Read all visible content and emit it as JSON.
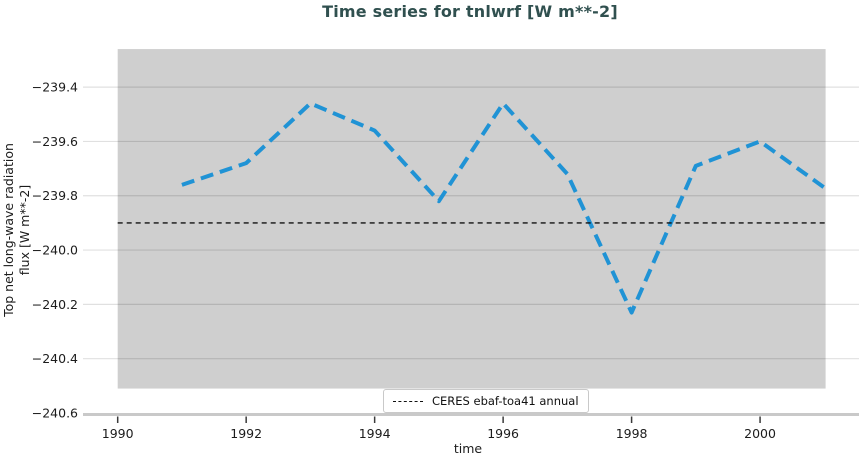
{
  "colors": {
    "title": "#30504f",
    "line": "#2093d5",
    "reference_line": "#111111",
    "band": "#cfcfcf",
    "grid": "rgba(0,0,0,0.12)",
    "axis_line": "#c9c9c9",
    "tick_mark": "#3a3a3a",
    "text": "#1c1c1c"
  },
  "legend": {
    "position": "lower center",
    "items": [
      {
        "label": "CERES ebaf-toa41 annual",
        "sample": "black-dashed-line"
      }
    ]
  },
  "chart_data": {
    "type": "line",
    "title": "Time series for tnlwrf [W m**-2]",
    "xlabel": "time",
    "ylabel": "Top net long-wave radiation\nflux [W m**-2]",
    "xlim": [
      1989.46,
      2001.54
    ],
    "ylim": [
      -240.6,
      -239.245
    ],
    "grid": true,
    "xticks": [
      1990,
      1992,
      1994,
      1996,
      1998,
      2000
    ],
    "xtick_labels": [
      "1990",
      "1992",
      "1994",
      "1996",
      "1998",
      "2000"
    ],
    "yticks": [
      -239.4,
      -239.6,
      -239.8,
      -240.0,
      -240.2,
      -240.4,
      -240.6
    ],
    "ytick_labels": [
      "−239.4",
      "−239.6",
      "−239.8",
      "−240.0",
      "−240.2",
      "−240.4",
      "−240.6"
    ],
    "band": {
      "x_range": [
        1990,
        2001.02
      ],
      "y_range": [
        -240.51,
        -239.26
      ]
    },
    "series": [
      {
        "name": "tnlwrf",
        "style": "dashed",
        "color": "#2093d5",
        "x": [
          1991,
          1992,
          1993,
          1994,
          1995,
          1996,
          1997,
          1998,
          1999,
          2000,
          2001
        ],
        "values": [
          -239.76,
          -239.68,
          -239.46,
          -239.56,
          -239.82,
          -239.46,
          -239.72,
          -240.23,
          -239.69,
          -239.6,
          -239.77
        ]
      },
      {
        "name": "CERES ebaf-toa41 annual",
        "style": "dashed",
        "type": "hline",
        "color": "#111111",
        "value": -239.9,
        "x_range": [
          1990,
          2001.02
        ]
      }
    ]
  }
}
